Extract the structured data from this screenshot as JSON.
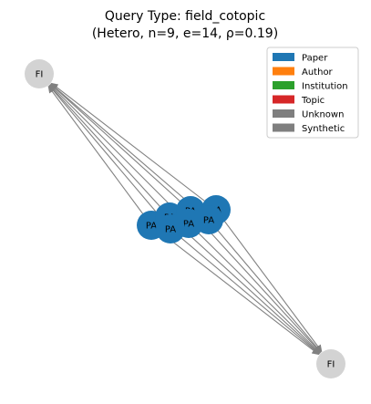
{
  "title": {
    "line1": "Query Type: field_cotopic",
    "line2": "(Hetero, n=9, e=14, ρ=0.19)"
  },
  "colors": {
    "Paper": "#1f77b4",
    "Author": "#ff7f0e",
    "Institution": "#2ca02c",
    "Topic": "#d62728",
    "Unknown": "#7f7f7f",
    "Synthetic": "#7f7f7f",
    "field_node": "#d3d3d3",
    "edge": "#808080"
  },
  "legend": [
    {
      "label": "Paper",
      "color": "#1f77b4"
    },
    {
      "label": "Author",
      "color": "#ff7f0e"
    },
    {
      "label": "Institution",
      "color": "#2ca02c"
    },
    {
      "label": "Topic",
      "color": "#d62728"
    },
    {
      "label": "Unknown",
      "color": "#7f7f7f"
    },
    {
      "label": "Synthetic",
      "color": "#7f7f7f"
    }
  ],
  "nodes": [
    {
      "id": "fi_top",
      "label": "FI",
      "type": "field"
    },
    {
      "id": "fi_bottom",
      "label": "FI",
      "type": "field"
    },
    {
      "id": "pa1",
      "label": "PA",
      "type": "Paper"
    },
    {
      "id": "pa2",
      "label": "PA",
      "type": "Paper"
    },
    {
      "id": "pa3",
      "label": "PA",
      "type": "Paper"
    },
    {
      "id": "pa4",
      "label": "PA",
      "type": "Paper"
    },
    {
      "id": "pa5",
      "label": "PA",
      "type": "Paper"
    },
    {
      "id": "pa6",
      "label": "PA",
      "type": "Paper"
    },
    {
      "id": "pa7",
      "label": "PA",
      "type": "Paper"
    }
  ],
  "edges": [
    {
      "from": "pa1",
      "to": "fi_top"
    },
    {
      "from": "pa2",
      "to": "fi_top"
    },
    {
      "from": "pa3",
      "to": "fi_top"
    },
    {
      "from": "pa4",
      "to": "fi_top"
    },
    {
      "from": "pa5",
      "to": "fi_top"
    },
    {
      "from": "pa6",
      "to": "fi_top"
    },
    {
      "from": "pa7",
      "to": "fi_top"
    },
    {
      "from": "pa1",
      "to": "fi_bottom"
    },
    {
      "from": "pa2",
      "to": "fi_bottom"
    },
    {
      "from": "pa3",
      "to": "fi_bottom"
    },
    {
      "from": "pa4",
      "to": "fi_bottom"
    },
    {
      "from": "pa5",
      "to": "fi_bottom"
    },
    {
      "from": "pa6",
      "to": "fi_bottom"
    },
    {
      "from": "pa7",
      "to": "fi_bottom"
    }
  ]
}
